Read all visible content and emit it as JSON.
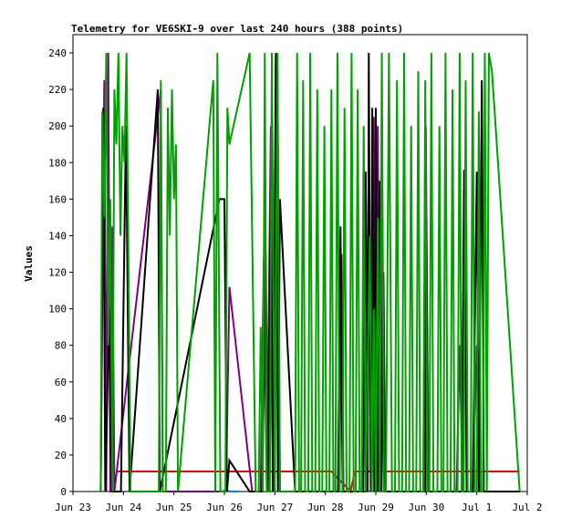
{
  "chart_data": {
    "type": "line",
    "title": "Telemetry for VE6SKI-9 over last 240 hours (388 points)",
    "xlabel": "",
    "ylabel": "Values",
    "ylim": [
      0,
      250
    ],
    "y_ticks": [
      0,
      20,
      40,
      60,
      80,
      100,
      120,
      140,
      160,
      180,
      200,
      220,
      240
    ],
    "x_range": [
      0,
      9
    ],
    "x_ticks": [
      {
        "label": "Jun 23",
        "x": 0
      },
      {
        "label": "Jun 24",
        "x": 1
      },
      {
        "label": "Jun 25",
        "x": 2
      },
      {
        "label": "Jun 26",
        "x": 3
      },
      {
        "label": "Jun 27",
        "x": 4
      },
      {
        "label": "Jun 28",
        "x": 5
      },
      {
        "label": "Jun 29",
        "x": 6
      },
      {
        "label": "Jun 30",
        "x": 7
      },
      {
        "label": "Jul 1",
        "x": 8
      },
      {
        "label": "Jul 2",
        "x": 9
      }
    ],
    "grid": false,
    "series": [
      {
        "color": "#ff0000",
        "points": [
          [
            0.85,
            11
          ],
          [
            5.12,
            11
          ],
          [
            5.5,
            0
          ],
          [
            5.58,
            11
          ],
          [
            8.85,
            11
          ]
        ]
      },
      {
        "color": "#0080ff",
        "points": [
          [
            2.95,
            0
          ],
          [
            3.05,
            1
          ],
          [
            3.1,
            0
          ],
          [
            3.3,
            0
          ]
        ]
      },
      {
        "color": "#800080",
        "points": [
          [
            0.55,
            0
          ],
          [
            0.62,
            225
          ],
          [
            0.66,
            0
          ],
          [
            0.7,
            240
          ],
          [
            0.74,
            0
          ],
          [
            0.78,
            145
          ],
          [
            0.82,
            0
          ],
          [
            1.74,
            220
          ],
          [
            1.78,
            0
          ],
          [
            2.98,
            0
          ],
          [
            3.03,
            0
          ],
          [
            3.1,
            112
          ],
          [
            3.55,
            0
          ],
          [
            3.72,
            0
          ],
          [
            3.78,
            128
          ],
          [
            3.84,
            0
          ],
          [
            3.92,
            200
          ],
          [
            3.98,
            0
          ],
          [
            4.05,
            240
          ],
          [
            4.1,
            0
          ],
          [
            4.4,
            0
          ],
          [
            5.28,
            0
          ],
          [
            5.32,
            130
          ],
          [
            5.36,
            0
          ],
          [
            5.8,
            0
          ],
          [
            5.86,
            180
          ],
          [
            5.9,
            0
          ],
          [
            5.96,
            205
          ],
          [
            6.0,
            0
          ],
          [
            6.04,
            200
          ],
          [
            6.08,
            0
          ],
          [
            6.12,
            160
          ],
          [
            6.16,
            0
          ],
          [
            6.94,
            0
          ],
          [
            6.99,
            200
          ],
          [
            7.04,
            0
          ],
          [
            7.6,
            0
          ],
          [
            7.66,
            80
          ],
          [
            7.72,
            0
          ],
          [
            7.92,
            0
          ],
          [
            8.0,
            80
          ],
          [
            8.06,
            0
          ],
          [
            8.85,
            0
          ]
        ]
      },
      {
        "color": "#000000",
        "points": [
          [
            0.55,
            0
          ],
          [
            0.6,
            210
          ],
          [
            0.64,
            0
          ],
          [
            0.72,
            100
          ],
          [
            0.76,
            0
          ],
          [
            0.95,
            0
          ],
          [
            1.05,
            200
          ],
          [
            1.12,
            0
          ],
          [
            1.68,
            220
          ],
          [
            1.72,
            0
          ],
          [
            2.9,
            160
          ],
          [
            3.0,
            160
          ],
          [
            3.05,
            0
          ],
          [
            3.1,
            17
          ],
          [
            3.5,
            0
          ],
          [
            3.75,
            0
          ],
          [
            3.82,
            130
          ],
          [
            3.86,
            0
          ],
          [
            3.92,
            150
          ],
          [
            3.96,
            0
          ],
          [
            4.02,
            240
          ],
          [
            4.06,
            0
          ],
          [
            4.1,
            160
          ],
          [
            4.4,
            0
          ],
          [
            5.25,
            0
          ],
          [
            5.3,
            145
          ],
          [
            5.34,
            0
          ],
          [
            5.75,
            0
          ],
          [
            5.8,
            175
          ],
          [
            5.84,
            0
          ],
          [
            5.86,
            240
          ],
          [
            5.9,
            0
          ],
          [
            5.93,
            210
          ],
          [
            5.97,
            0
          ],
          [
            6.0,
            210
          ],
          [
            6.04,
            0
          ],
          [
            6.07,
            170
          ],
          [
            6.11,
            0
          ],
          [
            6.15,
            120
          ],
          [
            6.19,
            0
          ],
          [
            6.98,
            0
          ],
          [
            7.0,
            150
          ],
          [
            7.04,
            0
          ],
          [
            7.7,
            0
          ],
          [
            7.75,
            176
          ],
          [
            7.8,
            0
          ],
          [
            7.85,
            0
          ],
          [
            7.92,
            0
          ],
          [
            8.0,
            175
          ],
          [
            8.04,
            0
          ],
          [
            8.1,
            225
          ],
          [
            8.14,
            0
          ],
          [
            8.85,
            0
          ]
        ]
      },
      {
        "color": "#00a000",
        "points": [
          [
            0.55,
            0
          ],
          [
            0.58,
            208
          ],
          [
            0.62,
            150
          ],
          [
            0.66,
            240
          ],
          [
            0.7,
            80
          ],
          [
            0.74,
            160
          ],
          [
            0.78,
            0
          ],
          [
            0.82,
            220
          ],
          [
            0.86,
            190
          ],
          [
            0.9,
            240
          ],
          [
            0.94,
            140
          ],
          [
            0.98,
            200
          ],
          [
            1.02,
            180
          ],
          [
            1.06,
            240
          ],
          [
            1.1,
            120
          ],
          [
            1.14,
            0
          ],
          [
            1.7,
            0
          ],
          [
            1.74,
            225
          ],
          [
            1.78,
            0
          ],
          [
            1.84,
            0
          ],
          [
            1.88,
            210
          ],
          [
            1.92,
            140
          ],
          [
            1.96,
            220
          ],
          [
            2.0,
            160
          ],
          [
            2.04,
            190
          ],
          [
            2.08,
            0
          ],
          [
            2.78,
            225
          ],
          [
            2.82,
            0
          ],
          [
            2.86,
            240
          ],
          [
            2.92,
            0
          ],
          [
            3.02,
            0
          ],
          [
            3.06,
            210
          ],
          [
            3.1,
            190
          ],
          [
            3.5,
            240
          ],
          [
            3.62,
            0
          ],
          [
            3.68,
            0
          ],
          [
            3.72,
            90
          ],
          [
            3.76,
            0
          ],
          [
            3.8,
            240
          ],
          [
            3.84,
            0
          ],
          [
            3.9,
            0
          ],
          [
            3.94,
            240
          ],
          [
            4.0,
            0
          ],
          [
            4.05,
            240
          ],
          [
            4.1,
            0
          ],
          [
            4.35,
            0
          ],
          [
            4.4,
            0
          ],
          [
            4.44,
            240
          ],
          [
            4.48,
            0
          ],
          [
            4.52,
            0
          ],
          [
            4.56,
            225
          ],
          [
            4.6,
            0
          ],
          [
            4.66,
            0
          ],
          [
            4.7,
            240
          ],
          [
            4.74,
            0
          ],
          [
            4.8,
            0
          ],
          [
            4.84,
            220
          ],
          [
            4.88,
            0
          ],
          [
            4.94,
            0
          ],
          [
            4.98,
            200
          ],
          [
            5.02,
            0
          ],
          [
            5.08,
            0
          ],
          [
            5.12,
            220
          ],
          [
            5.16,
            0
          ],
          [
            5.2,
            0
          ],
          [
            5.24,
            240
          ],
          [
            5.28,
            0
          ],
          [
            5.34,
            0
          ],
          [
            5.38,
            210
          ],
          [
            5.42,
            0
          ],
          [
            5.48,
            0
          ],
          [
            5.52,
            240
          ],
          [
            5.56,
            0
          ],
          [
            5.6,
            0
          ],
          [
            5.64,
            220
          ],
          [
            5.68,
            0
          ],
          [
            5.72,
            0
          ],
          [
            5.76,
            200
          ],
          [
            5.8,
            0
          ],
          [
            5.88,
            140
          ],
          [
            5.92,
            0
          ],
          [
            5.96,
            100
          ],
          [
            6.0,
            0
          ],
          [
            6.04,
            150
          ],
          [
            6.08,
            0
          ],
          [
            6.12,
            240
          ],
          [
            6.16,
            0
          ],
          [
            6.2,
            0
          ],
          [
            6.26,
            240
          ],
          [
            6.32,
            0
          ],
          [
            6.38,
            0
          ],
          [
            6.42,
            225
          ],
          [
            6.46,
            0
          ],
          [
            6.52,
            0
          ],
          [
            6.56,
            240
          ],
          [
            6.6,
            0
          ],
          [
            6.66,
            0
          ],
          [
            6.7,
            200
          ],
          [
            6.74,
            0
          ],
          [
            6.8,
            0
          ],
          [
            6.84,
            230
          ],
          [
            6.88,
            0
          ],
          [
            6.94,
            0
          ],
          [
            6.98,
            225
          ],
          [
            7.02,
            0
          ],
          [
            7.06,
            0
          ],
          [
            7.1,
            240
          ],
          [
            7.14,
            0
          ],
          [
            7.22,
            0
          ],
          [
            7.26,
            200
          ],
          [
            7.3,
            0
          ],
          [
            7.34,
            0
          ],
          [
            7.38,
            240
          ],
          [
            7.42,
            0
          ],
          [
            7.48,
            0
          ],
          [
            7.52,
            220
          ],
          [
            7.56,
            0
          ],
          [
            7.62,
            0
          ],
          [
            7.66,
            240
          ],
          [
            7.7,
            0
          ],
          [
            7.74,
            0
          ],
          [
            7.78,
            225
          ],
          [
            7.82,
            0
          ],
          [
            7.88,
            0
          ],
          [
            7.92,
            240
          ],
          [
            7.96,
            0
          ],
          [
            8.0,
            0
          ],
          [
            8.04,
            208
          ],
          [
            8.08,
            0
          ],
          [
            8.12,
            0
          ],
          [
            8.16,
            240
          ],
          [
            8.2,
            0
          ],
          [
            8.24,
            240
          ],
          [
            8.3,
            230
          ],
          [
            8.85,
            0
          ]
        ]
      }
    ]
  }
}
